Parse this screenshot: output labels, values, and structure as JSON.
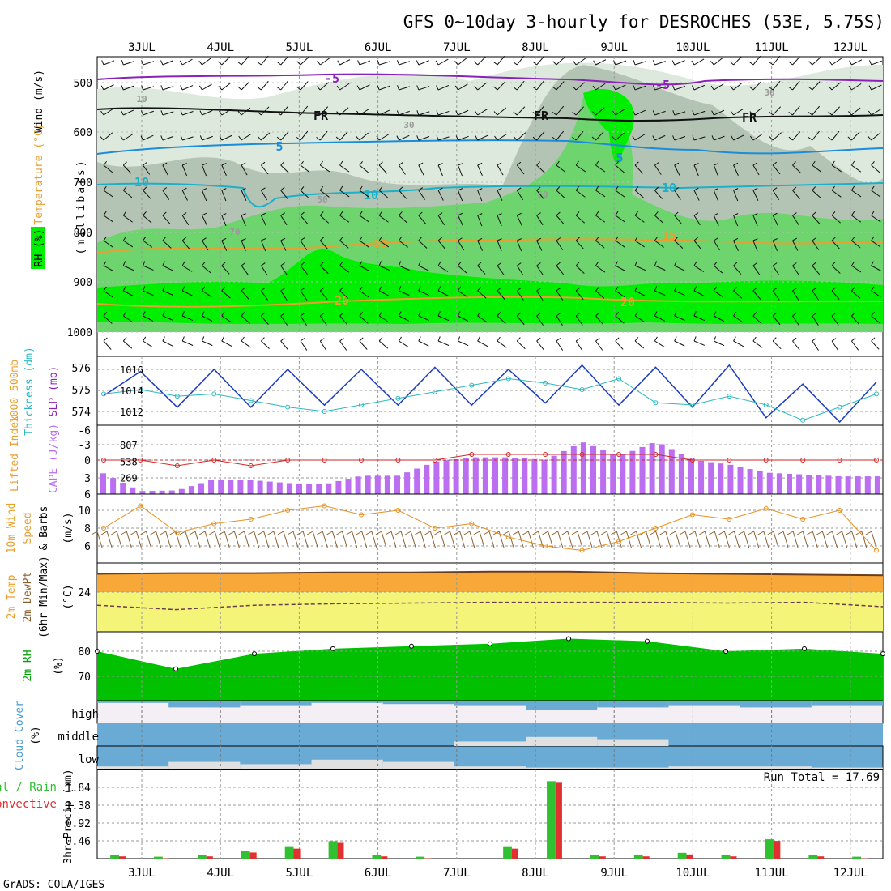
{
  "title": "GFS 0~10day 3-hourly for DESROCHES (53E, 5.75S)",
  "footer": "GrADS: COLA/IGES",
  "dates": [
    "3JUL",
    "4JUL",
    "5JUL",
    "6JUL",
    "7JUL",
    "8JUL",
    "9JUL",
    "10JUL",
    "11JUL",
    "12JUL"
  ],
  "colors": {
    "rh_light": "#dce9dc",
    "rh_grey": "#b4c4b4",
    "rh_mid": "#6ed46e",
    "rh_bright": "#00ee00",
    "temp_violet": "#8a22b8",
    "temp_black": "#111111",
    "temp_blue": "#1c8cd8",
    "temp_cyan": "#1cb0c8",
    "temp_orange": "#e8a030",
    "slp": "#1c3cc0",
    "thickness": "#2cb8c0",
    "lifted_index": "#d02828",
    "cape": "#bb6ef0",
    "wind_speed": "#e89020",
    "temp_fill": "#f8a838",
    "dew_fill": "#f4f478",
    "rh2m": "#00c000",
    "cloud": "#6aabd6",
    "precip_total": "#30c030",
    "precip_conv": "#e03030"
  },
  "panels": {
    "upper": {
      "title_labels": [
        "RH (%)",
        "Temperature (°C)",
        "Wind (m/s)"
      ],
      "ylabel": "(millibars)",
      "ticks": [
        "500",
        "600",
        "700",
        "800",
        "900",
        "1000"
      ],
      "contour_labels": [
        "-5",
        "-5",
        "FR",
        "FR",
        "FR",
        "5",
        "5",
        "10",
        "10",
        "10",
        "15",
        "15",
        "20",
        "20",
        "10",
        "30",
        "50",
        "70",
        "50",
        "30",
        "70"
      ]
    },
    "slp": {
      "labels": [
        "1000-500mb",
        "Thickness (dm)",
        "SLP (mb)"
      ],
      "ticks_left": [
        "576",
        "575",
        "574"
      ],
      "ticks_right": [
        "1016",
        "1014",
        "1012"
      ]
    },
    "cape": {
      "labels": [
        "Lifted Index",
        "CAPE (J/kg)"
      ],
      "ticks_left": [
        "-6",
        "-3",
        "0",
        "3",
        "6"
      ],
      "ticks_right": [
        "807",
        "538",
        "269"
      ]
    },
    "wind10m": {
      "labels": [
        "10m Wind",
        "Speed",
        "& Barbs",
        "(m/s)"
      ],
      "ticks": [
        "10",
        "8",
        "6"
      ]
    },
    "temp2m": {
      "labels": [
        "2m Temp",
        "2m DewPt",
        "(6hr Min/Max)",
        "(°C)"
      ],
      "ticks": [
        "24"
      ]
    },
    "rh2m": {
      "labels": [
        "2m RH",
        "(%)"
      ],
      "ticks": [
        "80",
        "70"
      ]
    },
    "cloud": {
      "labels": [
        "Cloud Cover",
        "(%)"
      ],
      "ticks": [
        "high",
        "middle",
        "low"
      ]
    },
    "precip": {
      "labels": [
        "Total / Rain",
        "Convective",
        "3hr Precip (mm)"
      ],
      "ticks": [
        "1.84",
        "1.38",
        "0.92",
        "0.46"
      ],
      "run_total": "Run Total = 17.69"
    }
  },
  "chart_data": {
    "type": "line",
    "x_dates": [
      "3JUL",
      "4JUL",
      "5JUL",
      "6JUL",
      "7JUL",
      "8JUL",
      "9JUL",
      "10JUL",
      "11JUL",
      "12JUL"
    ],
    "slp_mb": [
      1013.5,
      1015.8,
      1012.4,
      1016.0,
      1012.4,
      1016.0,
      1012.6,
      1016.0,
      1012.6,
      1016.2,
      1012.6,
      1016.0,
      1012.8,
      1016.4,
      1012.6,
      1016.2,
      1012.4,
      1016.4,
      1011.4,
      1014.6,
      1011.0,
      1014.8
    ],
    "thickness_dm": [
      574.8,
      575.0,
      574.7,
      574.8,
      574.5,
      574.2,
      574.0,
      574.3,
      574.6,
      574.9,
      575.2,
      575.5,
      575.3,
      575.0,
      575.5,
      574.4,
      574.3,
      574.7,
      574.3,
      573.6,
      574.2,
      574.8
    ],
    "lifted_index": [
      0,
      0,
      1,
      0,
      1,
      0,
      0,
      0,
      0,
      0,
      -1,
      -1,
      -1,
      -1,
      -1,
      -1,
      0,
      0,
      0,
      0,
      0,
      0
    ],
    "cape_jkg": [
      340,
      50,
      60,
      240,
      230,
      180,
      160,
      300,
      300,
      530,
      600,
      600,
      560,
      850,
      620,
      860,
      560,
      480,
      350,
      320,
      290,
      290
    ],
    "wind_speed_ms": [
      8.0,
      10.5,
      7.5,
      8.5,
      9.0,
      10.0,
      10.5,
      9.5,
      10.0,
      8.0,
      8.5,
      7.0,
      6.0,
      5.5,
      6.5,
      8.0,
      9.5,
      9.0,
      10.2,
      9.0,
      10.0,
      5.5
    ],
    "temp2m_c": [
      26.5,
      26.6,
      26.6,
      26.7,
      26.7,
      26.8,
      26.8,
      26.6,
      26.5,
      26.4,
      26.3
    ],
    "dewpt2m_c": [
      22.2,
      21.6,
      22.2,
      22.4,
      22.5,
      22.6,
      22.6,
      22.6,
      22.5,
      22.6,
      22.0
    ],
    "rh2m_pct": [
      80,
      73,
      79,
      81,
      82,
      83,
      85,
      84,
      80,
      81,
      79
    ],
    "cloud_high_pct": [
      10,
      30,
      20,
      10,
      15,
      20,
      40,
      30,
      20,
      30,
      20
    ],
    "cloud_middle_pct": [
      0,
      0,
      0,
      0,
      0,
      20,
      40,
      30,
      0,
      0,
      0
    ],
    "cloud_low_pct": [
      10,
      30,
      20,
      40,
      30,
      10,
      5,
      5,
      10,
      10,
      5
    ],
    "precip_total_mm": [
      0.1,
      0.05,
      0.1,
      0.2,
      0.3,
      0.45,
      0.1,
      0.05,
      0.0,
      0.3,
      2.0,
      0.1,
      0.1,
      0.15,
      0.1,
      0.5,
      0.1,
      0.05
    ],
    "run_total_mm": 17.69
  }
}
